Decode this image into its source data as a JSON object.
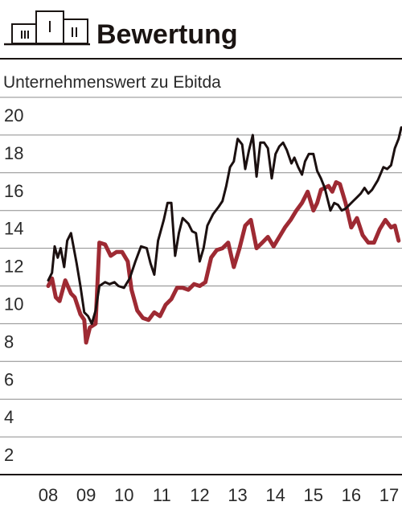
{
  "colors": {
    "ink": "#1a1412",
    "grid": "#8c8c8c",
    "series_dark": "#1b1010",
    "series_red": "#9e2a33"
  },
  "header": {
    "icon": "buildings-icon",
    "title": "Bewertung"
  },
  "chart_data": {
    "type": "line",
    "title": "Bewertung",
    "ylabel": "Unternehmenswert zu Ebitda",
    "xlabel": "",
    "ylim": [
      0,
      20
    ],
    "y_ticks": [
      "20",
      "18",
      "16",
      "14",
      "12",
      "10",
      "8",
      "6",
      "4",
      "2"
    ],
    "y_tick_values": [
      20,
      18,
      16,
      14,
      12,
      10,
      8,
      6,
      4,
      2
    ],
    "xlim": [
      2008,
      2017.6
    ],
    "x_ticks": [
      "08",
      "09",
      "10",
      "11",
      "12",
      "13",
      "14",
      "15",
      "16",
      "17"
    ],
    "x_tick_values": [
      2008,
      2009,
      2010,
      2011,
      2012,
      2013,
      2014,
      2015,
      2016,
      2017
    ],
    "grid": true,
    "series": [
      {
        "color": "#1b1010",
        "x": [
          2008.0,
          2008.1,
          2008.17,
          2008.25,
          2008.33,
          2008.42,
          2008.5,
          2008.6,
          2008.75,
          2008.85,
          2008.95,
          2009.05,
          2009.15,
          2009.25,
          2009.35,
          2009.5,
          2009.62,
          2009.75,
          2009.85,
          2010.0,
          2010.15,
          2010.3,
          2010.45,
          2010.6,
          2010.7,
          2010.8,
          2010.9,
          2011.05,
          2011.15,
          2011.25,
          2011.35,
          2011.45,
          2011.55,
          2011.7,
          2011.8,
          2011.9,
          2012.0,
          2012.1,
          2012.2,
          2012.35,
          2012.5,
          2012.6,
          2012.7,
          2012.8,
          2012.9,
          2013.0,
          2013.12,
          2013.2,
          2013.3,
          2013.4,
          2013.5,
          2013.6,
          2013.7,
          2013.8,
          2013.9,
          2014.0,
          2014.1,
          2014.2,
          2014.3,
          2014.42,
          2014.5,
          2014.6,
          2014.7,
          2014.78,
          2014.88,
          2015.0,
          2015.1,
          2015.2,
          2015.3,
          2015.45,
          2015.55,
          2015.65,
          2015.75,
          2015.85,
          2015.95,
          2016.05,
          2016.15,
          2016.25,
          2016.35,
          2016.45,
          2016.55,
          2016.7,
          2016.85,
          2016.95,
          2017.05,
          2017.15,
          2017.25,
          2017.32
        ],
        "y": [
          10.3,
          10.7,
          12.1,
          11.5,
          12.0,
          11.0,
          12.4,
          12.8,
          11.2,
          10.0,
          8.6,
          8.4,
          8.0,
          8.7,
          10.0,
          10.2,
          10.1,
          10.2,
          10.0,
          9.9,
          10.4,
          11.3,
          12.1,
          12.0,
          11.2,
          10.6,
          12.4,
          13.5,
          14.4,
          14.4,
          11.6,
          12.8,
          13.6,
          13.3,
          12.9,
          12.8,
          11.3,
          12.0,
          13.2,
          13.8,
          14.2,
          14.5,
          15.3,
          16.3,
          16.6,
          17.8,
          17.5,
          16.2,
          17.2,
          18.0,
          15.8,
          17.6,
          17.6,
          17.3,
          15.7,
          17.0,
          17.4,
          17.6,
          17.2,
          16.5,
          16.8,
          16.3,
          15.9,
          16.6,
          17.0,
          17.0,
          16.1,
          15.7,
          15.2,
          14.0,
          14.4,
          14.3,
          14.0,
          14.1,
          14.3,
          14.5,
          14.7,
          14.9,
          15.2,
          14.9,
          15.1,
          15.6,
          16.3,
          16.2,
          16.4,
          17.3,
          17.8,
          18.4
        ]
      },
      {
        "color": "#9e2a33",
        "x": [
          2008.0,
          2008.1,
          2008.2,
          2008.3,
          2008.45,
          2008.6,
          2008.7,
          2008.85,
          2008.95,
          2009.0,
          2009.1,
          2009.25,
          2009.35,
          2009.5,
          2009.65,
          2009.8,
          2009.95,
          2010.1,
          2010.2,
          2010.35,
          2010.5,
          2010.65,
          2010.8,
          2010.95,
          2011.1,
          2011.25,
          2011.4,
          2011.55,
          2011.7,
          2011.85,
          2012.0,
          2012.15,
          2012.3,
          2012.45,
          2012.6,
          2012.75,
          2012.9,
          2013.05,
          2013.2,
          2013.35,
          2013.5,
          2013.65,
          2013.8,
          2013.95,
          2014.1,
          2014.25,
          2014.4,
          2014.55,
          2014.7,
          2014.85,
          2015.0,
          2015.1,
          2015.2,
          2015.3,
          2015.4,
          2015.5,
          2015.6,
          2015.7,
          2015.85,
          2016.0,
          2016.15,
          2016.3,
          2016.45,
          2016.6,
          2016.75,
          2016.9,
          2017.05,
          2017.15,
          2017.25
        ],
        "y": [
          10.0,
          10.4,
          9.4,
          9.2,
          10.3,
          9.6,
          9.4,
          8.5,
          8.2,
          7.0,
          7.8,
          8.0,
          12.3,
          12.2,
          11.6,
          11.8,
          11.8,
          11.3,
          9.8,
          8.7,
          8.3,
          8.2,
          8.6,
          8.4,
          9.0,
          9.3,
          9.9,
          9.9,
          9.8,
          10.1,
          10.0,
          10.2,
          11.5,
          11.9,
          12.0,
          12.3,
          11.0,
          12.0,
          13.2,
          13.5,
          12.0,
          12.3,
          12.6,
          12.1,
          12.6,
          13.1,
          13.5,
          14.0,
          14.4,
          15.0,
          14.0,
          14.4,
          15.1,
          15.2,
          15.3,
          15.0,
          15.5,
          15.4,
          14.4,
          13.1,
          13.6,
          12.7,
          12.3,
          12.3,
          13.0,
          13.5,
          13.1,
          13.2,
          12.4
        ]
      }
    ]
  }
}
